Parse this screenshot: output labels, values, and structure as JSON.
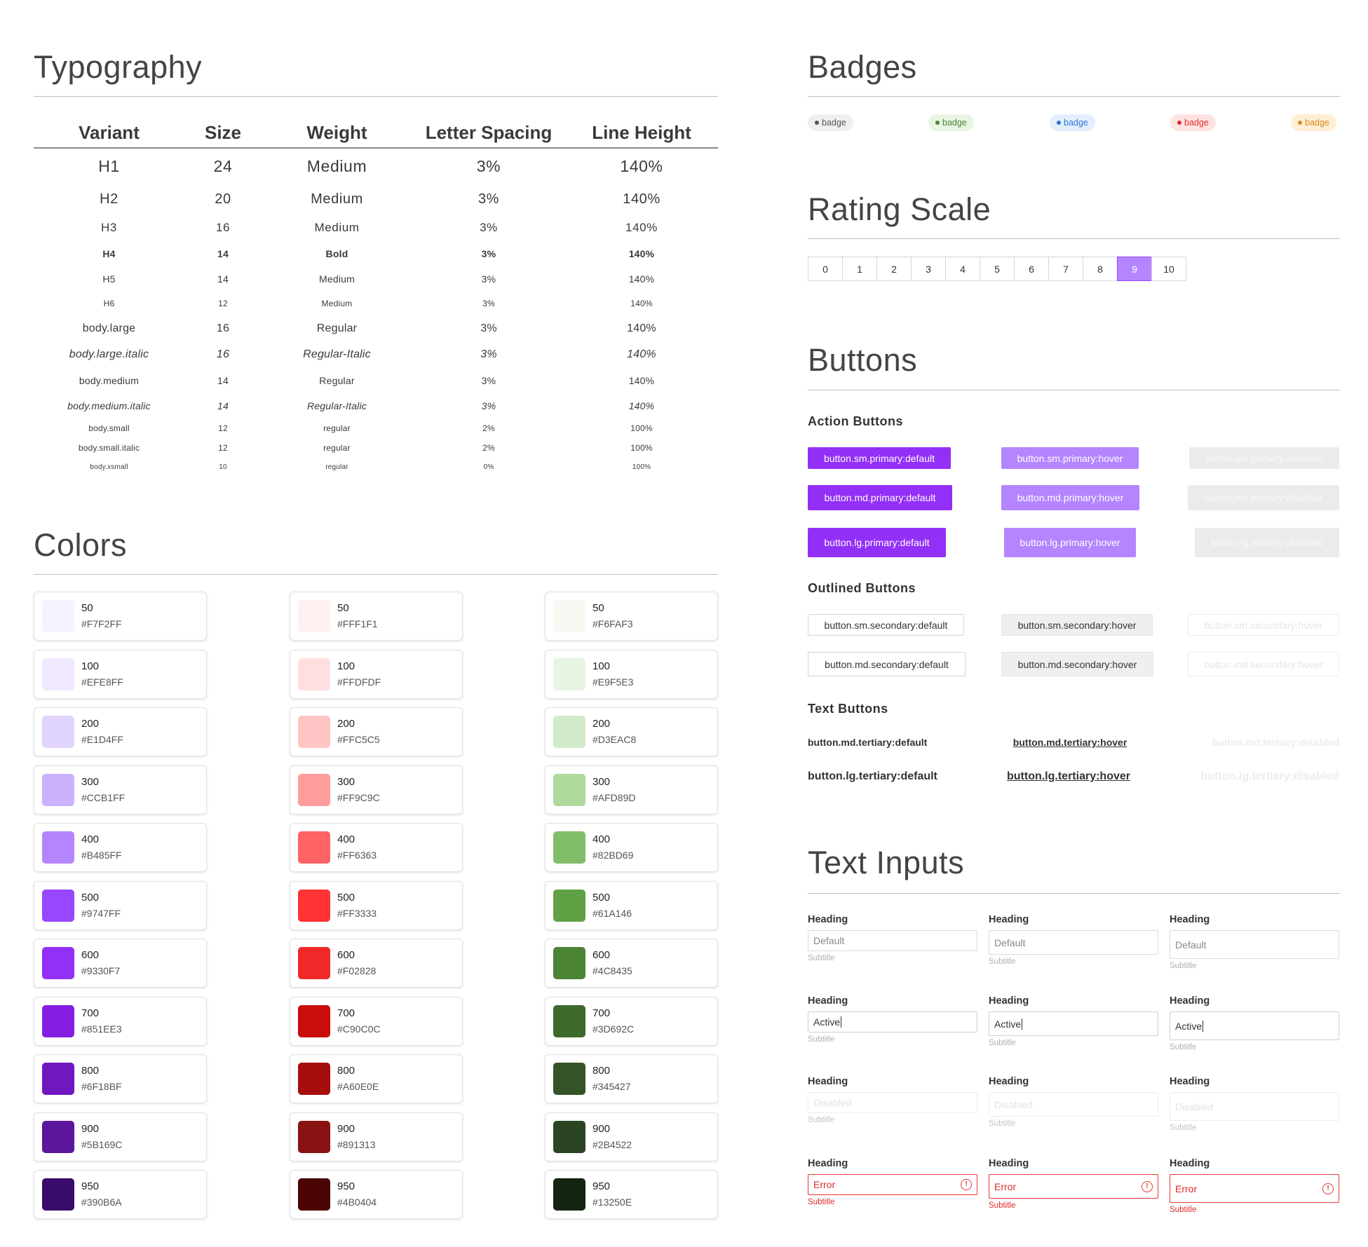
{
  "typography": {
    "title": "Typography",
    "headers": [
      "Variant",
      "Size",
      "Weight",
      "Letter Spacing",
      "Line Height"
    ],
    "rows": [
      {
        "variant": "H1",
        "size": "24",
        "weight": "Medium",
        "spacing": "3%",
        "line": "140%"
      },
      {
        "variant": "H2",
        "size": "20",
        "weight": "Medium",
        "spacing": "3%",
        "line": "140%"
      },
      {
        "variant": "H3",
        "size": "16",
        "weight": "Medium",
        "spacing": "3%",
        "line": "140%"
      },
      {
        "variant": "H4",
        "size": "14",
        "weight": "Bold",
        "spacing": "3%",
        "line": "140%"
      },
      {
        "variant": "H5",
        "size": "14",
        "weight": "Medium",
        "spacing": "3%",
        "line": "140%"
      },
      {
        "variant": "H6",
        "size": "12",
        "weight": "Medium",
        "spacing": "3%",
        "line": "140%"
      },
      {
        "variant": "body.large",
        "size": "16",
        "weight": "Regular",
        "spacing": "3%",
        "line": "140%"
      },
      {
        "variant": "body.large.italic",
        "size": "16",
        "weight": "Regular-Italic",
        "spacing": "3%",
        "line": "140%"
      },
      {
        "variant": "body.medium",
        "size": "14",
        "weight": "Regular",
        "spacing": "3%",
        "line": "140%"
      },
      {
        "variant": "body.medium.italic",
        "size": "14",
        "weight": "Regular-Italic",
        "spacing": "3%",
        "line": "140%"
      },
      {
        "variant": "body.small",
        "size": "12",
        "weight": "regular",
        "spacing": "2%",
        "line": "100%"
      },
      {
        "variant": "body.small.italic",
        "size": "12",
        "weight": "regular",
        "spacing": "2%",
        "line": "100%"
      },
      {
        "variant": "body.xsmall",
        "size": "10",
        "weight": "regular",
        "spacing": "0%",
        "line": "100%"
      }
    ]
  },
  "colors": {
    "title": "Colors",
    "palettes": [
      {
        "name": "purple",
        "swatches": [
          {
            "shade": "50",
            "hex": "#F7F2FF"
          },
          {
            "shade": "100",
            "hex": "#EFE8FF"
          },
          {
            "shade": "200",
            "hex": "#E1D4FF"
          },
          {
            "shade": "300",
            "hex": "#CCB1FF"
          },
          {
            "shade": "400",
            "hex": "#B485FF"
          },
          {
            "shade": "500",
            "hex": "#9747FF"
          },
          {
            "shade": "600",
            "hex": "#9330F7"
          },
          {
            "shade": "700",
            "hex": "#851EE3"
          },
          {
            "shade": "800",
            "hex": "#6F18BF"
          },
          {
            "shade": "900",
            "hex": "#5B169C"
          },
          {
            "shade": "950",
            "hex": "#390B6A"
          }
        ]
      },
      {
        "name": "red",
        "swatches": [
          {
            "shade": "50",
            "hex": "#FFF1F1"
          },
          {
            "shade": "100",
            "hex": "#FFDFDF"
          },
          {
            "shade": "200",
            "hex": "#FFC5C5"
          },
          {
            "shade": "300",
            "hex": "#FF9C9C"
          },
          {
            "shade": "400",
            "hex": "#FF6363"
          },
          {
            "shade": "500",
            "hex": "#FF3333"
          },
          {
            "shade": "600",
            "hex": "#F02828"
          },
          {
            "shade": "700",
            "hex": "#C90C0C"
          },
          {
            "shade": "800",
            "hex": "#A60E0E"
          },
          {
            "shade": "900",
            "hex": "#891313"
          },
          {
            "shade": "950",
            "hex": "#4B0404"
          }
        ]
      },
      {
        "name": "green",
        "swatches": [
          {
            "shade": "50",
            "hex": "#F6FAF3"
          },
          {
            "shade": "100",
            "hex": "#E9F5E3"
          },
          {
            "shade": "200",
            "hex": "#D3EAC8"
          },
          {
            "shade": "300",
            "hex": "#AFD89D"
          },
          {
            "shade": "400",
            "hex": "#82BD69"
          },
          {
            "shade": "500",
            "hex": "#61A146"
          },
          {
            "shade": "600",
            "hex": "#4C8435"
          },
          {
            "shade": "700",
            "hex": "#3D692C"
          },
          {
            "shade": "800",
            "hex": "#345427"
          },
          {
            "shade": "900",
            "hex": "#2B4522"
          },
          {
            "shade": "950",
            "hex": "#13250E"
          }
        ]
      }
    ]
  },
  "badges": {
    "title": "Badges",
    "items": [
      {
        "label": "badge",
        "bg": "#efefef",
        "fg": "#555555",
        "dot": "#555555"
      },
      {
        "label": "badge",
        "bg": "#e9f5e3",
        "fg": "#4c8435",
        "dot": "#4c8435"
      },
      {
        "label": "badge",
        "bg": "#e3effd",
        "fg": "#2f73d9",
        "dot": "#2f73d9"
      },
      {
        "label": "badge",
        "bg": "#ffe3e3",
        "fg": "#e02b2b",
        "dot": "#e02b2b"
      },
      {
        "label": "badge",
        "bg": "#ffefd6",
        "fg": "#d98a1a",
        "dot": "#d98a1a"
      }
    ]
  },
  "rating": {
    "title": "Rating Scale",
    "values": [
      "0",
      "1",
      "2",
      "3",
      "4",
      "5",
      "6",
      "7",
      "8",
      "9",
      "10"
    ],
    "selected": "9"
  },
  "buttons": {
    "title": "Buttons",
    "action_heading": "Action Buttons",
    "outlined_heading": "Outlined Buttons",
    "text_heading": "Text Buttons",
    "action": {
      "sm_default": "button.sm.primary:default",
      "sm_hover": "button.sm.primary:hover",
      "sm_disabled": "button.sm.primary:disabled",
      "md_default": "button.md.primary:default",
      "md_hover": "button.md.primary:hover",
      "md_disabled": "button.md.primary:disabled",
      "lg_default": "button.lg.primary:default",
      "lg_hover": "button.lg.primary:hover",
      "lg_disabled": "button.lg.primary:disabled"
    },
    "outlined": {
      "sm_default": "button.sm.secondary:default",
      "sm_hover": "button.sm.secondary:hover",
      "sm_disabled": "button.sm.secondary:hover",
      "md_default": "button.md.secondary:default",
      "md_hover": "button.md.secondary:hover",
      "md_disabled": "button.md.secondary:hover"
    },
    "text": {
      "md_default": "button.md.tertiary:default",
      "md_hover": "button.md.tertiary:hover",
      "md_disabled": "button.md.tertiary:disabled",
      "lg_default": "button.lg.tertiary:default",
      "lg_hover": "button.lg.tertiary:hover",
      "lg_disabled": "button.lg.tertiary:disabled"
    }
  },
  "inputs": {
    "title": "Text Inputs",
    "heading": "Heading",
    "subtitle": "Subtitle",
    "values": {
      "default": "Default",
      "active": "Active",
      "disabled": "Disabled",
      "error": "Error"
    },
    "error_icon": "alert-circle-icon"
  }
}
